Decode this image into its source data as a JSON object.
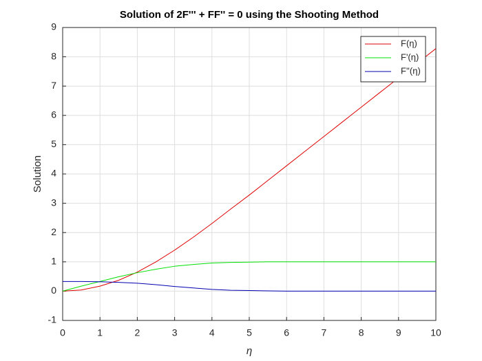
{
  "chart_data": {
    "type": "line",
    "title": "Solution of 2F''' + FF'' = 0 using the Shooting Method",
    "xlabel": "η",
    "ylabel": "Solution",
    "x": [
      0,
      0.5,
      1,
      1.5,
      2,
      2.5,
      3,
      3.5,
      4,
      4.5,
      5,
      5.5,
      6,
      6.5,
      7,
      7.5,
      8,
      8.5,
      9,
      9.5,
      10
    ],
    "series": [
      {
        "name": "F(η)",
        "color": "#e00000",
        "values": [
          0,
          0.04,
          0.17,
          0.37,
          0.65,
          1.0,
          1.4,
          1.84,
          2.31,
          2.8,
          3.28,
          3.78,
          4.28,
          4.78,
          5.28,
          5.78,
          6.28,
          6.78,
          7.28,
          7.78,
          8.28
        ]
      },
      {
        "name": "F'(η)",
        "color": "#00e000",
        "values": [
          0,
          0.17,
          0.33,
          0.49,
          0.63,
          0.75,
          0.85,
          0.91,
          0.96,
          0.98,
          0.99,
          1.0,
          1.0,
          1.0,
          1.0,
          1.0,
          1.0,
          1.0,
          1.0,
          1.0,
          1.0
        ]
      },
      {
        "name": "F''(η)",
        "color": "#0000b0",
        "values": [
          0.33,
          0.33,
          0.32,
          0.3,
          0.27,
          0.22,
          0.16,
          0.11,
          0.06,
          0.03,
          0.02,
          0.01,
          0,
          0,
          0,
          0,
          0,
          0,
          0,
          0,
          0
        ]
      }
    ],
    "xlim": [
      0,
      10
    ],
    "ylim": [
      -1,
      9
    ],
    "xticks": [
      0,
      1,
      2,
      3,
      4,
      5,
      6,
      7,
      8,
      9,
      10
    ],
    "yticks": [
      -1,
      0,
      1,
      2,
      3,
      4,
      5,
      6,
      7,
      8,
      9
    ],
    "grid": true,
    "legend": "northeast"
  }
}
